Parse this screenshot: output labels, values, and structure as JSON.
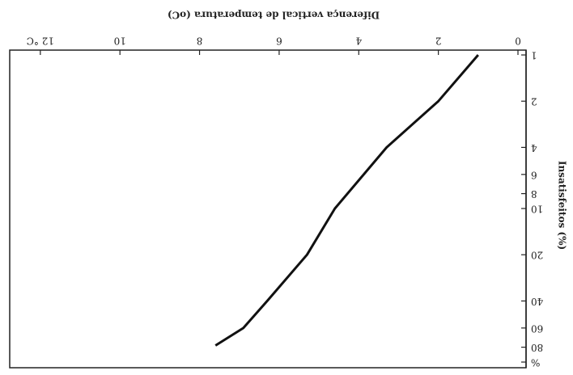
{
  "chart_data": {
    "type": "line",
    "x_label": "Diferença vertical de temperatura (oC)",
    "y_label": "Insatisfeitos (%)",
    "x": [
      1,
      2,
      3.3,
      4.6,
      5.3,
      6.3,
      6.9,
      7.6
    ],
    "values": [
      1,
      2,
      4,
      10,
      20,
      40,
      60,
      78
    ],
    "color": "#111111",
    "xlim": [
      0,
      12.2
    ],
    "xticks": [
      0,
      2,
      4,
      6,
      8,
      10,
      {
        "value": 12,
        "label": "12 °C"
      }
    ],
    "ylim": [
      1,
      100
    ],
    "yticks": [
      1,
      2,
      4,
      6,
      8,
      10,
      20,
      40,
      60,
      80,
      {
        "value": 100,
        "label": "%"
      }
    ],
    "ylog": true
  }
}
